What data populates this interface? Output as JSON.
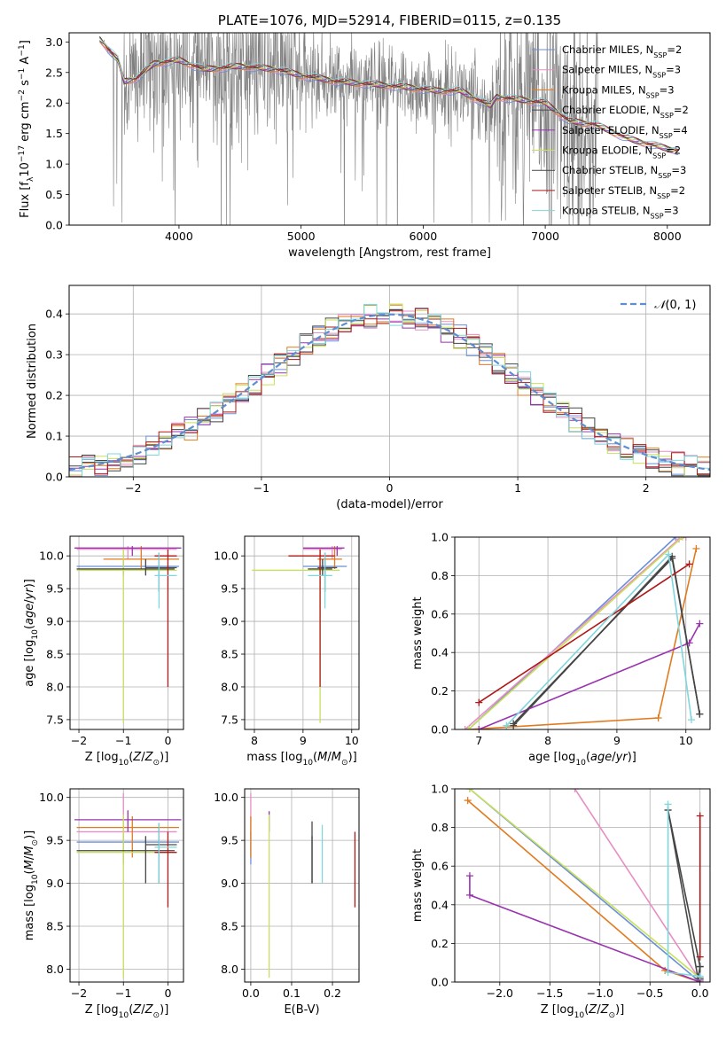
{
  "series_names": [
    "Chabrier MILES, N_SSP=2",
    "Salpeter MILES, N_SSP=3",
    "Kroupa MILES, N_SSP=3",
    "Chabrier ELODIE, N_SSP=2",
    "Salpeter ELODIE, N_SSP=4",
    "Kroupa ELODIE, N_SSP=2",
    "Chabrier STELIB, N_SSP=3",
    "Salpeter STELIB, N_SSP=2",
    "Kroupa STELIB, N_SSP=3"
  ],
  "series_colors": [
    "#6a8fd8",
    "#e68fc4",
    "#e07b20",
    "#4a4a4a",
    "#9a33b0",
    "#c8e05a",
    "#444444",
    "#b01818",
    "#7fd6dc"
  ],
  "chart_data": [
    {
      "id": "spectrum",
      "type": "line",
      "title": "PLATE=1076, MJD=52914, FIBERID=0115, z=0.135",
      "xlabel": "wavelength [Angstrom, rest frame]",
      "ylabel": "Flux [f_λ 10^-17 erg cm^-2 s^-1 A^-1]",
      "xlim": [
        3100,
        8350
      ],
      "ylim": [
        0,
        3.15
      ],
      "xticks": [
        4000,
        5000,
        6000,
        7000,
        8000
      ],
      "yticks": [
        0.0,
        0.5,
        1.0,
        1.5,
        2.0,
        2.5,
        3.0
      ],
      "legend": "top-right",
      "data_color": "#808080",
      "continuum_x": [
        3350,
        3500,
        3550,
        3650,
        3800,
        4000,
        4200,
        4500,
        4800,
        5000,
        5300,
        5600,
        5900,
        6100,
        6300,
        6500,
        6550,
        6600,
        6800,
        7000,
        7200,
        7400,
        7700,
        8000,
        8100
      ],
      "continuum_y": [
        3.05,
        2.7,
        2.35,
        2.4,
        2.65,
        2.7,
        2.55,
        2.6,
        2.55,
        2.45,
        2.35,
        2.3,
        2.25,
        2.2,
        2.2,
        2.0,
        1.95,
        2.1,
        2.05,
        2.0,
        1.7,
        1.65,
        1.4,
        1.25,
        1.22
      ]
    },
    {
      "id": "residuals",
      "type": "histogram",
      "xlabel": "(data-model)/error",
      "ylabel": "Normed distribution",
      "xlim": [
        -2.5,
        2.5
      ],
      "ylim": [
        0,
        0.47
      ],
      "xticks": [
        -2,
        -1,
        0,
        1,
        2
      ],
      "yticks": [
        0.0,
        0.1,
        0.2,
        0.3,
        0.4
      ],
      "legend_label": "N(0,1)",
      "legend": "top-right",
      "reference_color": "#5f8ed0",
      "bin_width": 0.1
    },
    {
      "id": "age-vs-Z",
      "type": "errorbar",
      "xlabel": "Z [log10(Z/Z☉)]",
      "ylabel": "age [log10(age/yr)]",
      "xlim": [
        -2.2,
        0.35
      ],
      "ylim": [
        7.35,
        10.3
      ],
      "xticks": [
        -2,
        -1,
        0
      ],
      "yticks": [
        7.5,
        8.0,
        8.5,
        9.0,
        9.5,
        10.0
      ],
      "points": [
        {
          "s": 0,
          "x": -1.0,
          "xmin": -2.05,
          "xmax": 0.25,
          "y": 9.84,
          "ymin": 9.7,
          "ymax": 9.95
        },
        {
          "s": 1,
          "x": -0.9,
          "xmin": -2.05,
          "xmax": 0.2,
          "y": 10.1,
          "ymin": 9.95,
          "ymax": 10.15
        },
        {
          "s": 2,
          "x": -0.6,
          "xmin": -1.45,
          "xmax": 0.25,
          "y": 9.95,
          "ymin": 9.8,
          "ymax": 10.15
        },
        {
          "s": 3,
          "x": -0.2,
          "xmin": -0.5,
          "xmax": 0.2,
          "y": 9.82,
          "ymin": 9.45,
          "ymax": 10.05
        },
        {
          "s": 4,
          "x": -0.8,
          "xmin": -2.1,
          "xmax": 0.3,
          "y": 10.12,
          "ymin": 10.0,
          "ymax": 10.15
        },
        {
          "s": 5,
          "x": -1.0,
          "xmin": -2.05,
          "xmax": 0.2,
          "y": 9.78,
          "ymin": 7.45,
          "ymax": 10.1
        },
        {
          "s": 6,
          "x": -0.5,
          "xmin": -2.05,
          "xmax": 0.15,
          "y": 9.8,
          "ymin": 9.7,
          "ymax": 9.95
        },
        {
          "s": 7,
          "x": 0.0,
          "xmin": -0.3,
          "xmax": 0.2,
          "y": 10.0,
          "ymin": 8.0,
          "ymax": 10.1
        },
        {
          "s": 8,
          "x": -0.2,
          "xmin": -0.3,
          "xmax": 0.2,
          "y": 9.7,
          "ymin": 9.2,
          "ymax": 10.05
        }
      ]
    },
    {
      "id": "age-vs-mass",
      "type": "errorbar",
      "xlabel": "mass [log10(M/M☉)]",
      "ylabel": "",
      "xlim": [
        7.8,
        10.15
      ],
      "ylim": [
        7.35,
        10.3
      ],
      "xticks": [
        8,
        9,
        10
      ],
      "yticks": [
        7.5,
        8.0,
        8.5,
        9.0,
        9.5,
        10.0
      ],
      "points": [
        {
          "s": 0,
          "x": 9.45,
          "xmin": 9.0,
          "xmax": 9.9,
          "y": 9.84,
          "ymin": 9.7,
          "ymax": 9.95
        },
        {
          "s": 1,
          "x": 9.6,
          "xmin": 9.0,
          "xmax": 9.8,
          "y": 10.1,
          "ymin": 9.95,
          "ymax": 10.15
        },
        {
          "s": 2,
          "x": 9.65,
          "xmin": 9.3,
          "xmax": 9.8,
          "y": 9.95,
          "ymin": 9.8,
          "ymax": 10.15
        },
        {
          "s": 3,
          "x": 9.45,
          "xmin": 9.3,
          "xmax": 9.7,
          "y": 9.82,
          "ymin": 9.45,
          "ymax": 10.05
        },
        {
          "s": 4,
          "x": 9.7,
          "xmin": 9.0,
          "xmax": 9.85,
          "y": 10.12,
          "ymin": 10.0,
          "ymax": 10.15
        },
        {
          "s": 5,
          "x": 9.35,
          "xmin": 7.95,
          "xmax": 9.75,
          "y": 9.78,
          "ymin": 7.45,
          "ymax": 10.1
        },
        {
          "s": 6,
          "x": 9.4,
          "xmin": 9.1,
          "xmax": 9.6,
          "y": 9.8,
          "ymin": 9.7,
          "ymax": 9.95
        },
        {
          "s": 7,
          "x": 9.35,
          "xmin": 8.7,
          "xmax": 9.65,
          "y": 10.0,
          "ymin": 8.0,
          "ymax": 10.1
        },
        {
          "s": 8,
          "x": 9.45,
          "xmin": 9.1,
          "xmax": 9.6,
          "y": 9.7,
          "ymin": 9.2,
          "ymax": 10.05
        }
      ]
    },
    {
      "id": "weight-vs-age",
      "type": "line",
      "xlabel": "age [log10(age/yr)]",
      "ylabel": "mass weight",
      "xlim": [
        6.65,
        10.35
      ],
      "ylim": [
        0,
        1
      ],
      "xticks": [
        7,
        8,
        9,
        10
      ],
      "yticks": [
        0.0,
        0.2,
        0.4,
        0.6,
        0.8,
        1.0
      ],
      "series": [
        {
          "s": 0,
          "x": [
            6.85,
            9.85
          ],
          "y": [
            0.0,
            1.0
          ]
        },
        {
          "s": 1,
          "x": [
            6.8,
            9.9,
            10.0
          ],
          "y": [
            0.0,
            0.99,
            1.0
          ]
        },
        {
          "s": 2,
          "x": [
            6.85,
            9.6,
            10.15
          ],
          "y": [
            0.0,
            0.06,
            0.94
          ]
        },
        {
          "s": 3,
          "x": [
            7.5,
            9.8,
            10.2
          ],
          "y": [
            0.02,
            0.9,
            0.08
          ]
        },
        {
          "s": 4,
          "x": [
            7.0,
            10.05,
            10.2
          ],
          "y": [
            0.0,
            0.45,
            0.55
          ]
        },
        {
          "s": 5,
          "x": [
            6.85,
            9.95
          ],
          "y": [
            0.0,
            1.0
          ]
        },
        {
          "s": 6,
          "x": [
            7.5,
            9.8,
            10.2
          ],
          "y": [
            0.03,
            0.89,
            0.08
          ]
        },
        {
          "s": 7,
          "x": [
            7.0,
            10.05
          ],
          "y": [
            0.14,
            0.86
          ]
        },
        {
          "s": 8,
          "x": [
            7.4,
            9.75,
            10.08
          ],
          "y": [
            0.02,
            0.91,
            0.05
          ]
        }
      ]
    },
    {
      "id": "mass-vs-Z",
      "type": "errorbar",
      "xlabel": "Z [log10(Z/Z☉)]",
      "ylabel": "mass [log10(M/M☉)]",
      "xlim": [
        -2.2,
        0.35
      ],
      "ylim": [
        7.85,
        10.1
      ],
      "xticks": [
        -2,
        -1,
        0
      ],
      "yticks": [
        8.0,
        8.5,
        9.0,
        9.5,
        10.0
      ],
      "points": [
        {
          "s": 0,
          "x": -1.0,
          "xmin": -2.05,
          "xmax": 0.25,
          "y": 9.48,
          "ymin": 9.22,
          "ymax": 9.6
        },
        {
          "s": 1,
          "x": -1.0,
          "xmin": -2.05,
          "xmax": 0.2,
          "y": 9.6,
          "ymin": 9.5,
          "ymax": 10.05
        },
        {
          "s": 2,
          "x": -0.8,
          "xmin": -2.05,
          "xmax": 0.25,
          "y": 9.65,
          "ymin": 9.3,
          "ymax": 9.78
        },
        {
          "s": 3,
          "x": -0.2,
          "xmin": -0.5,
          "xmax": 0.2,
          "y": 9.45,
          "ymin": 9.0,
          "ymax": 9.7
        },
        {
          "s": 4,
          "x": -0.9,
          "xmin": -2.1,
          "xmax": 0.3,
          "y": 9.74,
          "ymin": 9.6,
          "ymax": 9.85
        },
        {
          "s": 5,
          "x": -1.0,
          "xmin": -2.05,
          "xmax": 0.2,
          "y": 9.36,
          "ymin": 7.9,
          "ymax": 9.8
        },
        {
          "s": 6,
          "x": -0.5,
          "xmin": -2.05,
          "xmax": 0.15,
          "y": 9.38,
          "ymin": 9.0,
          "ymax": 9.55
        },
        {
          "s": 7,
          "x": 0.0,
          "xmin": -0.3,
          "xmax": 0.2,
          "y": 9.36,
          "ymin": 8.72,
          "ymax": 9.6
        },
        {
          "s": 8,
          "x": -0.2,
          "xmin": -0.3,
          "xmax": 0.2,
          "y": 9.42,
          "ymin": 9.0,
          "ymax": 9.7
        }
      ]
    },
    {
      "id": "mass-vs-ebv",
      "type": "errorbar",
      "xlabel": "E(B-V)",
      "ylabel": "",
      "xlim": [
        -0.015,
        0.265
      ],
      "ylim": [
        7.85,
        10.1
      ],
      "xticks": [
        0.0,
        0.1,
        0.2
      ],
      "yticks": [
        8.0,
        8.5,
        9.0,
        9.5,
        10.0
      ],
      "points": [
        {
          "s": 0,
          "x": 0.0,
          "y": 9.48,
          "ymin": 9.22,
          "ymax": 9.6
        },
        {
          "s": 1,
          "x": 0.0,
          "y": 9.6,
          "ymin": 9.5,
          "ymax": 10.05
        },
        {
          "s": 2,
          "x": 0.0,
          "y": 9.65,
          "ymin": 9.3,
          "ymax": 9.78
        },
        {
          "s": 3,
          "x": 0.15,
          "y": 9.45,
          "ymin": 9.0,
          "ymax": 9.72
        },
        {
          "s": 4,
          "x": 0.045,
          "y": 9.74,
          "ymin": 9.6,
          "ymax": 9.84
        },
        {
          "s": 5,
          "x": 0.045,
          "y": 9.36,
          "ymin": 7.9,
          "ymax": 9.8
        },
        {
          "s": 6,
          "x": 0.15,
          "y": 9.38,
          "ymin": 9.0,
          "ymax": 9.55
        },
        {
          "s": 7,
          "x": 0.255,
          "y": 9.36,
          "ymin": 8.72,
          "ymax": 9.6
        },
        {
          "s": 8,
          "x": 0.175,
          "y": 9.42,
          "ymin": 9.0,
          "ymax": 9.68
        }
      ]
    },
    {
      "id": "weight-vs-Z",
      "type": "line",
      "xlabel": "Z [log10(Z/Z☉)]",
      "ylabel": "mass weight",
      "xlim": [
        -2.45,
        0.1
      ],
      "ylim": [
        0,
        1
      ],
      "xticks": [
        -2.0,
        -1.5,
        -1.0,
        -0.5,
        0.0
      ],
      "yticks": [
        0.0,
        0.2,
        0.4,
        0.6,
        0.8,
        1.0
      ],
      "series": [
        {
          "s": 0,
          "x": [
            -2.3,
            0.0
          ],
          "y": [
            1.0,
            0.0
          ]
        },
        {
          "s": 1,
          "x": [
            -1.25,
            0.0,
            0.0
          ],
          "y": [
            1.0,
            0.01,
            0.0
          ]
        },
        {
          "s": 2,
          "x": [
            -2.32,
            -0.35,
            0.0
          ],
          "y": [
            0.94,
            0.06,
            0.0
          ]
        },
        {
          "s": 3,
          "x": [
            -0.32,
            -0.02,
            0.0
          ],
          "y": [
            0.89,
            0.02,
            0.08
          ]
        },
        {
          "s": 4,
          "x": [
            -2.3,
            -2.3,
            0.0,
            0.0
          ],
          "y": [
            0.55,
            0.45,
            0.0,
            0.01
          ]
        },
        {
          "s": 5,
          "x": [
            -2.3,
            0.0
          ],
          "y": [
            1.0,
            0.02
          ]
        },
        {
          "s": 6,
          "x": [
            -0.32,
            0.0,
            0.0
          ],
          "y": [
            0.89,
            0.08,
            0.02
          ]
        },
        {
          "s": 7,
          "x": [
            0.0,
            0.0
          ],
          "y": [
            0.86,
            0.13
          ]
        },
        {
          "s": 8,
          "x": [
            -0.32,
            -0.32,
            0.0
          ],
          "y": [
            0.92,
            0.05,
            0.03
          ]
        }
      ]
    }
  ]
}
